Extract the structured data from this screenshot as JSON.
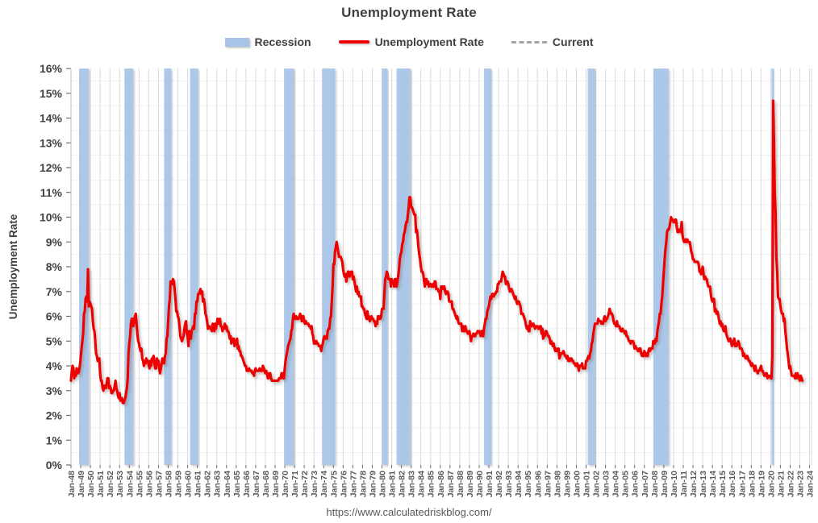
{
  "title": "Unemployment Rate",
  "legend": [
    {
      "label": "Recession",
      "type": "band",
      "color": "#a8c5e8"
    },
    {
      "label": "Unemployment Rate",
      "type": "line",
      "color": "#ee0000"
    },
    {
      "label": "Current",
      "type": "dashed",
      "color": "#a6a6a6"
    }
  ],
  "footer": {
    "url": "https://www.calculatedriskblog.com/"
  },
  "chart_data": {
    "type": "line",
    "title": "Unemployment Rate",
    "xlabel": "",
    "ylabel": "Unemployment Rate",
    "ylim": [
      0,
      16
    ],
    "xlim": [
      1948,
      2024.2
    ],
    "grid": {
      "major_horizontal": true,
      "minor_horizontal": true,
      "vertical": true
    },
    "legend_position": "top",
    "ytick_labels": [
      "0%",
      "1%",
      "2%",
      "3%",
      "4%",
      "5%",
      "6%",
      "7%",
      "8%",
      "9%",
      "10%",
      "11%",
      "12%",
      "13%",
      "14%",
      "15%",
      "16%"
    ],
    "xtick_labels": [
      "Jan-48",
      "Jan-49",
      "Jan-50",
      "Jan-51",
      "Jan-52",
      "Jan-53",
      "Jan-54",
      "Jan-55",
      "Jan-56",
      "Jan-57",
      "Jan-58",
      "Jan-59",
      "Jan-60",
      "Jan-61",
      "Jan-62",
      "Jan-63",
      "Jan-64",
      "Jan-65",
      "Jan-66",
      "Jan-67",
      "Jan-68",
      "Jan-69",
      "Jan-70",
      "Jan-71",
      "Jan-72",
      "Jan-73",
      "Jan-74",
      "Jan-75",
      "Jan-76",
      "Jan-77",
      "Jan-78",
      "Jan-79",
      "Jan-80",
      "Jan-81",
      "Jan-82",
      "Jan-83",
      "Jan-84",
      "Jan-85",
      "Jan-86",
      "Jan-87",
      "Jan-88",
      "Jan-89",
      "Jan-90",
      "Jan-91",
      "Jan-92",
      "Jan-93",
      "Jan-94",
      "Jan-95",
      "Jan-96",
      "Jan-97",
      "Jan-98",
      "Jan-99",
      "Jan-00",
      "Jan-01",
      "Jan-02",
      "Jan-03",
      "Jan-04",
      "Jan-05",
      "Jan-06",
      "Jan-07",
      "Jan-08",
      "Jan-09",
      "Jan-10",
      "Jan-11",
      "Jan-12",
      "Jan-13",
      "Jan-14",
      "Jan-15",
      "Jan-16",
      "Jan-17",
      "Jan-18",
      "Jan-19",
      "Jan-20",
      "Jan-21",
      "Jan-22",
      "Jan-23",
      "Jan-24"
    ],
    "colors": {
      "line": "#ee0000",
      "recession": "#a8c5e8",
      "current": "#a6a6a6",
      "major_grid": "#6d6d6d",
      "minor_grid": "#f0f0f0",
      "vertical_grid": "#d9d9d9",
      "axis": "#bdbdbd",
      "x_label": "#595959",
      "y_label": "#404040"
    },
    "current_line": {
      "value": 3.4,
      "x_start": 2008.0,
      "x_end": 2024.2
    },
    "recessions": [
      [
        1948.83,
        1949.83
      ],
      [
        1953.5,
        1954.42
      ],
      [
        1957.58,
        1958.33
      ],
      [
        1960.25,
        1961.08
      ],
      [
        1969.92,
        1970.92
      ],
      [
        1973.83,
        1975.17
      ],
      [
        1980.0,
        1980.58
      ],
      [
        1981.5,
        1982.92
      ],
      [
        1990.5,
        1991.25
      ],
      [
        2001.17,
        2001.92
      ],
      [
        2007.92,
        2009.5
      ],
      [
        2020.08,
        2020.33
      ]
    ],
    "series": [
      {
        "name": "Unemployment Rate",
        "start_year": 1948,
        "frequency": "monthly",
        "unit": "percent",
        "values": [
          3.4,
          3.8,
          4.0,
          3.9,
          3.5,
          3.6,
          3.6,
          3.9,
          3.8,
          3.7,
          3.8,
          4.0,
          4.3,
          4.7,
          5.0,
          5.3,
          6.1,
          6.2,
          6.7,
          6.8,
          6.6,
          7.9,
          6.4,
          6.6,
          6.5,
          6.4,
          6.3,
          5.8,
          5.5,
          5.4,
          5.0,
          4.5,
          4.4,
          4.2,
          4.2,
          4.3,
          3.7,
          3.4,
          3.4,
          3.1,
          3.0,
          3.2,
          3.1,
          3.1,
          3.3,
          3.5,
          3.5,
          3.1,
          3.2,
          3.1,
          2.9,
          2.9,
          3.0,
          3.0,
          3.2,
          3.4,
          3.1,
          3.0,
          2.8,
          2.7,
          2.9,
          2.6,
          2.6,
          2.7,
          2.5,
          2.5,
          2.6,
          2.7,
          2.9,
          3.1,
          3.5,
          4.5,
          4.9,
          5.2,
          5.7,
          5.9,
          5.9,
          5.6,
          5.8,
          6.0,
          6.1,
          5.7,
          5.3,
          5.0,
          4.9,
          4.7,
          4.6,
          4.7,
          4.3,
          4.2,
          4.0,
          4.2,
          4.1,
          4.3,
          4.2,
          4.2,
          4.0,
          3.9,
          4.2,
          4.0,
          4.3,
          4.3,
          4.4,
          4.1,
          3.9,
          3.9,
          4.3,
          4.2,
          4.2,
          3.9,
          3.7,
          3.9,
          4.1,
          4.3,
          4.2,
          4.1,
          4.4,
          4.5,
          5.1,
          5.2,
          5.8,
          6.4,
          6.7,
          7.4,
          7.4,
          7.3,
          7.5,
          7.4,
          7.1,
          6.7,
          6.2,
          6.2,
          6.0,
          5.9,
          5.6,
          5.2,
          5.1,
          5.0,
          5.1,
          5.2,
          5.5,
          5.7,
          5.8,
          5.3,
          5.2,
          4.8,
          5.4,
          5.2,
          5.1,
          5.4,
          5.5,
          5.6,
          5.5,
          6.1,
          6.1,
          6.6,
          6.6,
          6.9,
          6.9,
          7.0,
          7.1,
          6.9,
          7.0,
          6.6,
          6.7,
          6.5,
          6.1,
          6.0,
          5.8,
          5.5,
          5.6,
          5.6,
          5.5,
          5.5,
          5.4,
          5.7,
          5.6,
          5.4,
          5.7,
          5.5,
          5.7,
          5.9,
          5.7,
          5.7,
          5.9,
          5.6,
          5.6,
          5.4,
          5.5,
          5.5,
          5.7,
          5.5,
          5.6,
          5.4,
          5.4,
          5.3,
          5.1,
          5.2,
          4.9,
          5.0,
          5.1,
          5.1,
          4.8,
          5.0,
          4.9,
          5.1,
          4.7,
          4.8,
          4.6,
          4.6,
          4.4,
          4.4,
          4.3,
          4.2,
          4.1,
          4.0,
          4.0,
          3.8,
          3.8,
          3.8,
          3.9,
          3.8,
          3.8,
          3.8,
          3.7,
          3.7,
          3.6,
          3.8,
          3.9,
          3.8,
          3.8,
          3.8,
          3.8,
          3.9,
          3.8,
          3.8,
          3.8,
          4.0,
          3.9,
          3.8,
          3.7,
          3.8,
          3.7,
          3.5,
          3.5,
          3.7,
          3.7,
          3.5,
          3.4,
          3.4,
          3.4,
          3.4,
          3.4,
          3.4,
          3.4,
          3.4,
          3.4,
          3.5,
          3.5,
          3.5,
          3.7,
          3.7,
          3.5,
          3.5,
          3.9,
          4.2,
          4.4,
          4.6,
          4.8,
          4.9,
          5.0,
          5.1,
          5.4,
          5.5,
          5.9,
          6.1,
          5.9,
          5.9,
          6.0,
          5.9,
          5.9,
          5.9,
          6.0,
          6.1,
          6.0,
          5.8,
          6.0,
          6.0,
          5.8,
          5.7,
          5.8,
          5.7,
          5.7,
          5.7,
          5.6,
          5.6,
          5.5,
          5.6,
          5.3,
          5.2,
          4.9,
          5.0,
          4.9,
          5.0,
          4.9,
          4.9,
          4.8,
          4.8,
          4.8,
          4.6,
          4.8,
          4.9,
          5.1,
          5.2,
          5.1,
          5.1,
          5.1,
          5.4,
          5.5,
          5.5,
          5.9,
          6.0,
          6.6,
          7.2,
          8.1,
          8.1,
          8.6,
          8.8,
          9.0,
          8.8,
          8.6,
          8.4,
          8.4,
          8.4,
          8.3,
          8.2,
          7.9,
          7.7,
          7.6,
          7.7,
          7.4,
          7.6,
          7.8,
          7.8,
          7.6,
          7.7,
          7.8,
          7.8,
          7.5,
          7.6,
          7.4,
          7.2,
          7.0,
          7.2,
          6.9,
          7.0,
          6.8,
          6.8,
          6.8,
          6.4,
          6.4,
          6.3,
          6.3,
          6.1,
          6.0,
          5.9,
          6.2,
          5.9,
          6.0,
          5.8,
          5.9,
          6.0,
          5.9,
          5.9,
          5.8,
          5.8,
          5.6,
          5.7,
          5.7,
          6.0,
          5.9,
          6.0,
          5.9,
          6.0,
          6.3,
          6.3,
          6.3,
          6.9,
          7.5,
          7.6,
          7.8,
          7.7,
          7.5,
          7.5,
          7.5,
          7.2,
          7.5,
          7.4,
          7.4,
          7.2,
          7.5,
          7.5,
          7.2,
          7.4,
          7.6,
          7.9,
          8.3,
          8.5,
          8.6,
          8.9,
          9.0,
          9.3,
          9.4,
          9.6,
          9.8,
          9.8,
          10.1,
          10.4,
          10.8,
          10.8,
          10.4,
          10.4,
          10.3,
          10.2,
          10.1,
          10.1,
          9.4,
          9.5,
          9.2,
          8.8,
          8.5,
          8.3,
          8.0,
          7.8,
          7.8,
          7.7,
          7.4,
          7.2,
          7.5,
          7.5,
          7.3,
          7.4,
          7.2,
          7.3,
          7.3,
          7.2,
          7.2,
          7.3,
          7.2,
          7.4,
          7.4,
          7.1,
          7.1,
          7.1,
          7.0,
          7.0,
          6.7,
          7.2,
          7.2,
          7.1,
          7.2,
          7.2,
          7.0,
          6.9,
          7.0,
          7.0,
          6.9,
          6.6,
          6.6,
          6.6,
          6.6,
          6.3,
          6.3,
          6.2,
          6.1,
          6.0,
          5.9,
          6.0,
          5.8,
          5.7,
          5.7,
          5.7,
          5.7,
          5.4,
          5.6,
          5.4,
          5.4,
          5.6,
          5.4,
          5.4,
          5.3,
          5.3,
          5.4,
          5.2,
          5.0,
          5.2,
          5.2,
          5.3,
          5.2,
          5.2,
          5.3,
          5.3,
          5.4,
          5.4,
          5.4,
          5.3,
          5.2,
          5.4,
          5.4,
          5.2,
          5.5,
          5.7,
          5.9,
          5.9,
          6.2,
          6.3,
          6.4,
          6.6,
          6.8,
          6.7,
          6.9,
          6.9,
          6.8,
          6.9,
          6.9,
          7.0,
          7.0,
          7.3,
          7.3,
          7.4,
          7.4,
          7.4,
          7.6,
          7.8,
          7.7,
          7.6,
          7.6,
          7.3,
          7.4,
          7.4,
          7.3,
          7.1,
          7.0,
          7.1,
          7.1,
          7.0,
          6.9,
          6.8,
          6.7,
          6.8,
          6.6,
          6.5,
          6.6,
          6.6,
          6.5,
          6.4,
          6.1,
          6.1,
          6.1,
          6.0,
          5.9,
          5.8,
          5.6,
          5.5,
          5.6,
          5.4,
          5.4,
          5.8,
          5.6,
          5.6,
          5.7,
          5.7,
          5.6,
          5.5,
          5.6,
          5.6,
          5.6,
          5.5,
          5.5,
          5.6,
          5.6,
          5.3,
          5.5,
          5.1,
          5.2,
          5.2,
          5.4,
          5.4,
          5.3,
          5.2,
          5.2,
          5.1,
          4.9,
          5.0,
          4.9,
          4.8,
          4.9,
          4.7,
          4.6,
          4.7,
          4.6,
          4.6,
          4.7,
          4.3,
          4.4,
          4.5,
          4.5,
          4.5,
          4.6,
          4.5,
          4.4,
          4.4,
          4.3,
          4.4,
          4.2,
          4.3,
          4.2,
          4.3,
          4.3,
          4.2,
          4.2,
          4.1,
          4.1,
          4.0,
          4.0,
          4.1,
          4.0,
          3.8,
          4.0,
          4.0,
          4.0,
          4.1,
          3.9,
          3.9,
          3.9,
          3.9,
          4.2,
          4.2,
          4.3,
          4.4,
          4.3,
          4.5,
          4.6,
          4.9,
          5.0,
          5.3,
          5.5,
          5.7,
          5.7,
          5.7,
          5.7,
          5.9,
          5.8,
          5.8,
          5.8,
          5.7,
          5.7,
          5.7,
          5.9,
          6.0,
          5.8,
          5.9,
          5.9,
          6.0,
          6.1,
          6.3,
          6.2,
          6.1,
          6.1,
          6.0,
          5.8,
          5.7,
          5.7,
          5.6,
          5.8,
          5.6,
          5.6,
          5.6,
          5.5,
          5.4,
          5.4,
          5.5,
          5.4,
          5.4,
          5.3,
          5.4,
          5.2,
          5.2,
          5.1,
          5.0,
          5.0,
          4.9,
          5.0,
          5.0,
          5.0,
          4.9,
          4.7,
          4.8,
          4.7,
          4.7,
          4.6,
          4.6,
          4.7,
          4.7,
          4.5,
          4.4,
          4.5,
          4.4,
          4.6,
          4.5,
          4.4,
          4.5,
          4.4,
          4.6,
          4.7,
          4.6,
          4.7,
          4.7,
          4.7,
          5.0,
          5.0,
          4.9,
          5.1,
          5.0,
          5.4,
          5.6,
          5.8,
          6.1,
          6.1,
          6.5,
          6.8,
          7.3,
          7.8,
          8.3,
          8.7,
          9.0,
          9.4,
          9.5,
          9.5,
          9.6,
          9.8,
          10.0,
          9.9,
          9.9,
          9.8,
          9.8,
          9.9,
          9.9,
          9.6,
          9.4,
          9.4,
          9.5,
          9.5,
          9.4,
          9.8,
          9.3,
          9.1,
          9.0,
          9.0,
          9.1,
          9.0,
          9.1,
          9.0,
          9.0,
          9.0,
          8.8,
          8.6,
          8.5,
          8.3,
          8.3,
          8.2,
          8.2,
          8.2,
          8.2,
          8.2,
          8.1,
          7.8,
          7.8,
          7.7,
          7.9,
          8.0,
          7.7,
          7.5,
          7.6,
          7.5,
          7.5,
          7.3,
          7.2,
          7.2,
          7.2,
          6.9,
          6.7,
          6.6,
          6.7,
          6.7,
          6.2,
          6.3,
          6.1,
          6.2,
          6.1,
          5.9,
          5.7,
          5.8,
          5.6,
          5.7,
          5.5,
          5.4,
          5.4,
          5.6,
          5.3,
          5.2,
          5.1,
          5.0,
          5.0,
          5.1,
          5.0,
          4.8,
          4.9,
          5.0,
          5.1,
          4.8,
          4.9,
          4.8,
          4.9,
          5.0,
          4.9,
          4.7,
          4.7,
          4.7,
          4.6,
          4.4,
          4.5,
          4.4,
          4.3,
          4.3,
          4.4,
          4.3,
          4.2,
          4.2,
          4.1,
          4.0,
          4.1,
          4.0,
          4.0,
          3.8,
          4.0,
          3.8,
          3.8,
          3.7,
          3.8,
          3.8,
          3.9,
          4.0,
          3.8,
          3.8,
          3.7,
          3.6,
          3.6,
          3.7,
          3.7,
          3.5,
          3.6,
          3.6,
          3.6,
          3.5,
          3.5,
          4.4,
          14.7,
          13.2,
          11.0,
          10.2,
          8.4,
          7.8,
          6.8,
          6.7,
          6.7,
          6.4,
          6.2,
          6.1,
          6.1,
          5.8,
          5.9,
          5.4,
          5.1,
          4.7,
          4.5,
          4.2,
          3.9,
          4.0,
          3.8,
          3.6,
          3.6,
          3.6,
          3.6,
          3.5,
          3.7,
          3.5,
          3.7,
          3.6,
          3.5,
          3.4,
          3.6,
          3.5,
          3.4
        ]
      }
    ]
  }
}
